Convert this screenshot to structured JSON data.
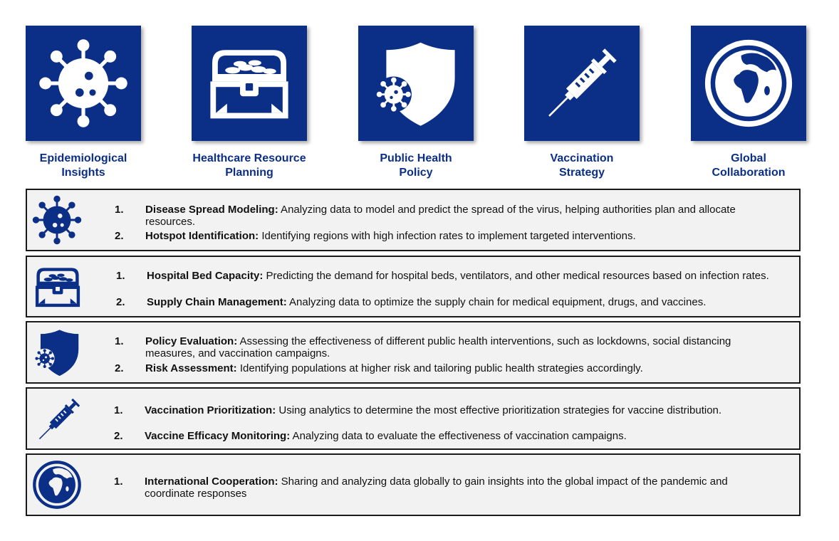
{
  "categories": [
    {
      "label": "Epidemiological\nInsights",
      "icon": "virus-icon"
    },
    {
      "label": "Healthcare Resource\nPlanning",
      "icon": "treasure-chest-icon"
    },
    {
      "label": "Public Health\nPolicy",
      "icon": "shield-virus-icon"
    },
    {
      "label": "Vaccination\nStrategy",
      "icon": "syringe-icon"
    },
    {
      "label": "Global\nCollaboration",
      "icon": "globe-icon"
    }
  ],
  "rows": [
    {
      "icon": "virus-icon",
      "items": [
        {
          "num": "1.",
          "title": "Disease Spread Modeling:",
          "text": " Analyzing data to model and predict the spread of the virus, helping authorities plan and allocate resources."
        },
        {
          "num": "2.",
          "title": "Hotspot Identification:",
          "text": " Identifying regions with high infection rates to implement targeted interventions."
        }
      ]
    },
    {
      "icon": "treasure-chest-icon",
      "items": [
        {
          "num": "1.",
          "title": "Hospital Bed Capacity:",
          "text": " Predicting the demand for hospital beds, ventilators, and other medical resources based on infection rates."
        },
        {
          "num": "2.",
          "title": "Supply Chain Management:",
          "text": " Analyzing data to optimize the supply chain for medical equipment, drugs, and vaccines."
        }
      ]
    },
    {
      "icon": "shield-virus-icon",
      "items": [
        {
          "num": "1.",
          "title": "Policy Evaluation:",
          "text": " Assessing the effectiveness of different public health interventions, such as lockdowns, social distancing measures, and vaccination campaigns."
        },
        {
          "num": "2.",
          "title": "Risk Assessment:",
          "text": " Identifying populations at higher risk and tailoring public health strategies accordingly."
        }
      ]
    },
    {
      "icon": "syringe-icon",
      "items": [
        {
          "num": "1.",
          "title": "Vaccination Prioritization:",
          "text": " Using analytics to determine the most effective prioritization strategies for vaccine distribution."
        },
        {
          "num": "2.",
          "title": "Vaccine Efficacy Monitoring:",
          "text": " Analyzing data to evaluate the effectiveness of vaccination campaigns."
        }
      ]
    },
    {
      "icon": "globe-icon",
      "items": [
        {
          "num": "1.",
          "title": "International Cooperation:",
          "text": " Sharing and analyzing data globally to gain insights into the global impact of the pandemic and coordinate responses"
        }
      ]
    }
  ],
  "colors": {
    "tile": "#0b2f87",
    "icon_white": "#ffffff",
    "row_bg": "#f2f2f2"
  }
}
